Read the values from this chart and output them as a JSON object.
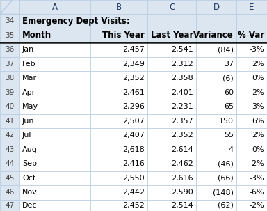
{
  "title": "Emergency Dept Visits:",
  "col_letters": [
    "A",
    "B",
    "C",
    "D",
    "E"
  ],
  "headers": [
    "Month",
    "This Year",
    "Last Year",
    "Variance",
    "% Var"
  ],
  "row_numbers": [
    34,
    35,
    36,
    37,
    38,
    39,
    40,
    41,
    42,
    43,
    44,
    45,
    46,
    47
  ],
  "months": [
    "Jan",
    "Feb",
    "Mar",
    "Apr",
    "May",
    "Jun",
    "Jul",
    "Aug",
    "Sep",
    "Oct",
    "Nov",
    "Dec"
  ],
  "this_year": [
    2457,
    2349,
    2352,
    2461,
    2296,
    2507,
    2407,
    2618,
    2416,
    2550,
    2442,
    2452
  ],
  "last_year": [
    2541,
    2312,
    2358,
    2401,
    2231,
    2357,
    2352,
    2614,
    2462,
    2616,
    2590,
    2514
  ],
  "variance": [
    "(84)",
    "37",
    "(6)",
    "60",
    "65",
    "150",
    "55",
    "4",
    "(46)",
    "(66)",
    "(148)",
    "(62)"
  ],
  "pct_var": [
    "-3%",
    "2%",
    "0%",
    "2%",
    "3%",
    "6%",
    "2%",
    "0%",
    "-2%",
    "-3%",
    "-6%",
    "-2%"
  ],
  "bg_light": "#dce6f1",
  "bg_white": "#ffffff",
  "grid_color": "#b8cce4",
  "col_header_bg": "#dce6f1",
  "row_num_bg": "#dce6f1",
  "header_text": "#1f3864",
  "data_text": "#000000",
  "row_num_text": "#444444",
  "thick_border_color": "#1a1a1a",
  "corner_color": "#c5d3e8"
}
